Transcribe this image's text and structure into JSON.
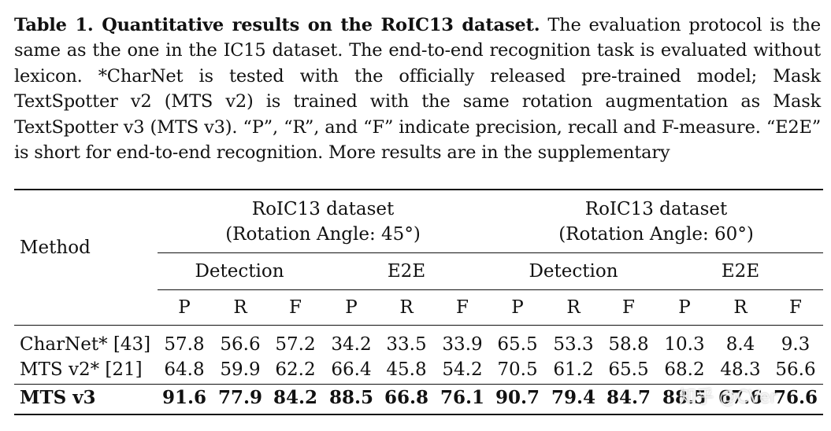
{
  "caption": {
    "title": "Table 1. Quantitative results on the RoIC13 dataset.",
    "body": " The evaluation protocol is the same as the one in the IC15 dataset. The end-to-end recognition task is evaluated without lexicon. *CharNet is tested with the officially released pre-trained model; Mask TextSpotter v2 (MTS v2) is trained with the same rotation augmentation as Mask TextSpotter v3 (MTS v3). “P”, “R”, and “F” indicate precision, recall and F-measure. “E2E” is short for end-to-end recognition. More results are in the supplementary"
  },
  "table": {
    "method_header": "Method",
    "groups": [
      {
        "dataset": "RoIC13 dataset",
        "angle": "(Rotation Angle: 45°)"
      },
      {
        "dataset": "RoIC13 dataset",
        "angle": "(Rotation Angle: 60°)"
      }
    ],
    "subgroups": [
      "Detection",
      "E2E",
      "Detection",
      "E2E"
    ],
    "metrics": [
      "P",
      "R",
      "F",
      "P",
      "R",
      "F",
      "P",
      "R",
      "F",
      "P",
      "R",
      "F"
    ],
    "rows": [
      {
        "method": "CharNet* [43]",
        "bold": false,
        "values": [
          "57.8",
          "56.6",
          "57.2",
          "34.2",
          "33.5",
          "33.9",
          "65.5",
          "53.3",
          "58.8",
          "10.3",
          "8.4",
          "9.3"
        ]
      },
      {
        "method": "MTS v2* [21]",
        "bold": false,
        "values": [
          "64.8",
          "59.9",
          "62.2",
          "66.4",
          "45.8",
          "54.2",
          "70.5",
          "61.2",
          "65.5",
          "68.2",
          "48.3",
          "56.6"
        ]
      },
      {
        "method": "MTS v3",
        "bold": true,
        "values": [
          "91.6",
          "77.9",
          "84.2",
          "88.5",
          "66.8",
          "76.1",
          "90.7",
          "79.4",
          "84.7",
          "88.5",
          "67.6",
          "76.6"
        ]
      }
    ]
  },
  "watermark": "知乎 @CVer"
}
